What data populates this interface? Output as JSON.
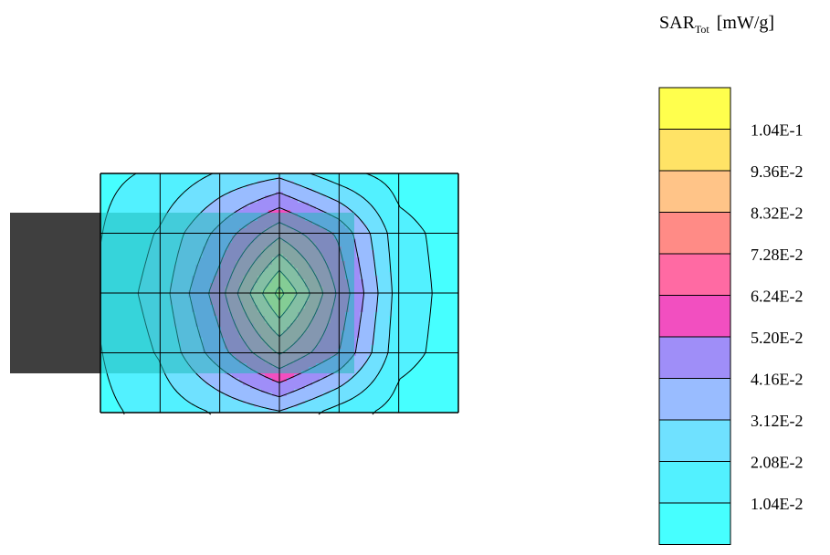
{
  "chart_data": {
    "type": "heatmap",
    "title": "",
    "legend": {
      "quantity": "SAR",
      "quantity_sub": "Tot",
      "unit": "[mW/g]",
      "levels": [
        {
          "label": "",
          "color": "#ffff4d"
        },
        {
          "label": "1.04E-1",
          "color": "#ffe366"
        },
        {
          "label": "9.36E-2",
          "color": "#ffc488"
        },
        {
          "label": "8.32E-2",
          "color": "#ff8b86"
        },
        {
          "label": "7.28E-2",
          "color": "#ff6aa3"
        },
        {
          "label": "6.24E-2",
          "color": "#f24fc0"
        },
        {
          "label": "5.20E-2",
          "color": "#9f8ef8"
        },
        {
          "label": "4.16E-2",
          "color": "#99bcff"
        },
        {
          "label": "3.12E-2",
          "color": "#6fe1ff"
        },
        {
          "label": "2.08E-2",
          "color": "#52f1ff"
        },
        {
          "label": "1.04E-2",
          "color": "#46ffff"
        }
      ]
    },
    "grid": {
      "columns": 6,
      "rows": 4
    },
    "peak_value": 0.108,
    "peak_grid_position": [
      3,
      2
    ],
    "field": [
      [
        0.008,
        0.012,
        0.022,
        0.028,
        0.014,
        0.006,
        0.004
      ],
      [
        0.01,
        0.022,
        0.045,
        0.07,
        0.05,
        0.014,
        0.006
      ],
      [
        0.012,
        0.026,
        0.058,
        0.108,
        0.06,
        0.016,
        0.006
      ],
      [
        0.01,
        0.022,
        0.048,
        0.074,
        0.052,
        0.014,
        0.006
      ],
      [
        0.008,
        0.014,
        0.022,
        0.03,
        0.016,
        0.006,
        0.004
      ]
    ]
  },
  "colors": {
    "phone_body": "#3f3f3f",
    "phone_overlay": "#1fbcbc",
    "grid_line": "#000000"
  }
}
